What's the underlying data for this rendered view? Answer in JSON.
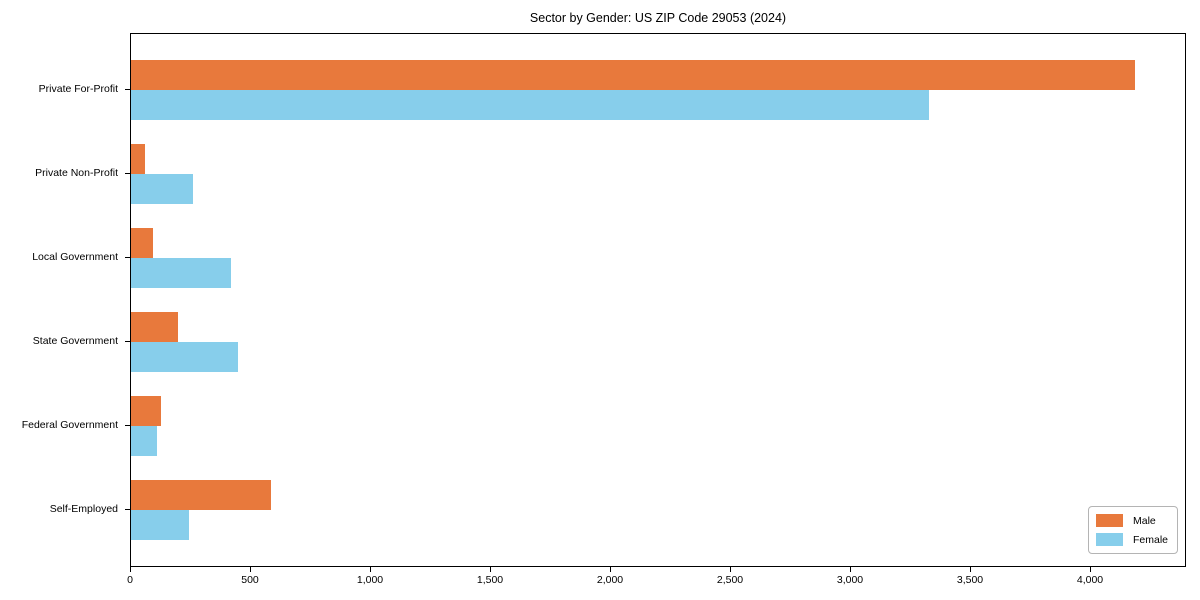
{
  "title": "Sector by Gender: US ZIP Code 29053 (2024)",
  "chart_data": {
    "type": "bar",
    "orientation": "horizontal",
    "title": "Sector by Gender: US ZIP Code 29053 (2024)",
    "categories": [
      "Private For-Profit",
      "Private Non-Profit",
      "Local Government",
      "State Government",
      "Federal Government",
      "Self-Employed"
    ],
    "series": [
      {
        "name": "Male",
        "color": "#e8793c",
        "values": [
          4185,
          60,
          90,
          195,
          125,
          585
        ]
      },
      {
        "name": "Female",
        "color": "#87ceeb",
        "values": [
          3325,
          260,
          415,
          445,
          110,
          240
        ]
      }
    ],
    "xlabel": "",
    "ylabel": "",
    "xlim": [
      0,
      4400
    ],
    "x_ticks": [
      0,
      500,
      1000,
      1500,
      2000,
      2500,
      3000,
      3500,
      4000
    ],
    "x_tick_labels": [
      "0",
      "500",
      "1,000",
      "1,500",
      "2,000",
      "2,500",
      "3,000",
      "3,500",
      "4,000"
    ],
    "grid": false,
    "legend_position": "lower right"
  },
  "legend": {
    "items": [
      {
        "label": "Male",
        "color": "#e8793c"
      },
      {
        "label": "Female",
        "color": "#87ceeb"
      }
    ]
  }
}
